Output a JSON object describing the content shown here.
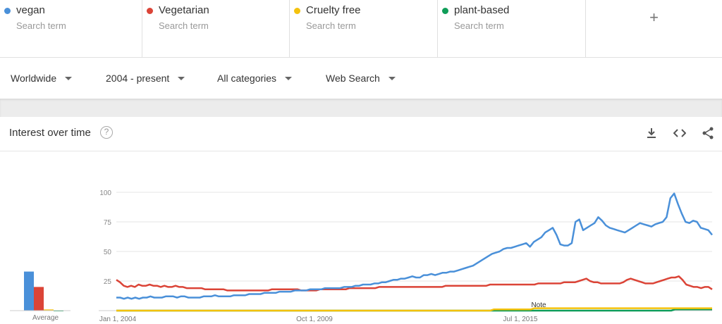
{
  "terms": [
    {
      "name": "vegan",
      "sub": "Search term",
      "color": "#4a90d9"
    },
    {
      "name": "Vegetarian",
      "sub": "Search term",
      "color": "#db4437"
    },
    {
      "name": "Cruelty free",
      "sub": "Search term",
      "color": "#f4c20d"
    },
    {
      "name": "plant-based",
      "sub": "Search term",
      "color": "#0f9d58"
    }
  ],
  "add_label": "+",
  "filters": {
    "region": "Worldwide",
    "period": "2004 - present",
    "category": "All categories",
    "search_type": "Web Search"
  },
  "card": {
    "title": "Interest over time",
    "help": "?",
    "avg_label": "Average",
    "note_label": "Note",
    "icons": [
      "download-icon",
      "embed-icon",
      "share-icon"
    ]
  },
  "chart_data": {
    "type": "line",
    "x_ticks": [
      "Jan 1, 2004",
      "Oct 1, 2009",
      "Jul 1, 2015"
    ],
    "y_ticks": [
      100,
      75,
      50,
      25
    ],
    "ylim": [
      0,
      100
    ],
    "series": [
      {
        "name": "vegan",
        "color": "#4a90d9",
        "values": [
          11,
          11,
          10,
          11,
          10,
          11,
          10,
          11,
          11,
          12,
          11,
          11,
          11,
          12,
          12,
          12,
          11,
          12,
          12,
          11,
          11,
          11,
          11,
          12,
          12,
          12,
          13,
          12,
          12,
          12,
          12,
          13,
          13,
          13,
          13,
          14,
          14,
          14,
          14,
          15,
          15,
          15,
          15,
          16,
          16,
          16,
          16,
          17,
          17,
          17,
          17,
          18,
          18,
          18,
          18,
          19,
          19,
          19,
          19,
          19,
          20,
          20,
          20,
          21,
          21,
          22,
          22,
          22,
          23,
          23,
          24,
          24,
          25,
          26,
          26,
          27,
          27,
          28,
          29,
          28,
          28,
          30,
          30,
          31,
          30,
          31,
          32,
          32,
          33,
          33,
          34,
          35,
          36,
          37,
          38,
          40,
          42,
          44,
          46,
          48,
          49,
          50,
          52,
          53,
          53,
          54,
          55,
          56,
          57,
          54,
          58,
          60,
          62,
          66,
          68,
          70,
          64,
          56,
          55,
          55,
          57,
          75,
          77,
          68,
          70,
          72,
          74,
          79,
          76,
          72,
          70,
          69,
          68,
          67,
          66,
          68,
          70,
          72,
          74,
          73,
          72,
          71,
          73,
          74,
          75,
          79,
          95,
          99,
          90,
          82,
          75,
          74,
          76,
          75,
          70,
          69,
          68,
          64
        ]
      },
      {
        "name": "Vegetarian",
        "color": "#db4437",
        "values": [
          26,
          24,
          21,
          20,
          21,
          20,
          22,
          21,
          21,
          22,
          21,
          21,
          20,
          21,
          20,
          20,
          21,
          20,
          20,
          19,
          19,
          19,
          19,
          19,
          18,
          18,
          18,
          18,
          18,
          18,
          17,
          17,
          17,
          17,
          17,
          17,
          17,
          17,
          17,
          17,
          17,
          17,
          18,
          18,
          18,
          18,
          18,
          18,
          18,
          18,
          17,
          17,
          17,
          17,
          17,
          18,
          18,
          18,
          18,
          18,
          18,
          18,
          18,
          19,
          19,
          19,
          19,
          19,
          19,
          19,
          19,
          20,
          20,
          20,
          20,
          20,
          20,
          20,
          20,
          20,
          20,
          20,
          20,
          20,
          20,
          20,
          20,
          20,
          20,
          21,
          21,
          21,
          21,
          21,
          21,
          21,
          21,
          21,
          21,
          21,
          21,
          22,
          22,
          22,
          22,
          22,
          22,
          22,
          22,
          22,
          22,
          22,
          22,
          22,
          23,
          23,
          23,
          23,
          23,
          23,
          23,
          24,
          24,
          24,
          24,
          25,
          26,
          27,
          25,
          24,
          24,
          23,
          23,
          23,
          23,
          23,
          23,
          24,
          26,
          27,
          26,
          25,
          24,
          23,
          23,
          23,
          24,
          25,
          26,
          27,
          28,
          28,
          29,
          26,
          22,
          21,
          20,
          20,
          19,
          20,
          20,
          18
        ]
      },
      {
        "name": "Cruelty free",
        "color": "#f4c20d",
        "values": [
          0,
          0,
          0,
          0,
          0,
          0,
          0,
          0,
          0,
          0,
          0,
          0,
          0,
          0,
          0,
          0,
          0,
          0,
          0,
          0,
          0,
          0,
          0,
          0,
          0,
          0,
          0,
          0,
          0,
          0,
          0,
          0,
          0,
          0,
          0,
          0,
          0,
          0,
          0,
          0,
          0,
          0,
          0,
          0,
          0,
          0,
          0,
          0,
          0,
          0,
          0,
          0,
          0,
          0,
          0,
          0,
          0,
          0,
          0,
          0,
          0,
          0,
          0,
          0,
          0,
          0,
          0,
          0,
          0,
          0,
          0,
          0,
          0,
          0,
          0,
          0,
          0,
          0,
          0,
          0,
          0,
          0,
          0,
          0,
          0,
          0,
          0,
          0,
          0,
          0,
          0,
          0,
          0,
          0,
          0,
          0,
          0,
          0,
          0,
          0,
          0,
          0,
          1,
          1,
          1,
          1,
          1,
          1,
          1,
          1,
          1,
          1,
          1,
          2,
          2,
          2,
          2,
          2,
          2,
          2,
          2,
          2,
          2,
          2,
          2,
          2,
          2,
          2,
          2,
          2,
          2,
          2,
          2,
          2,
          2,
          2,
          2,
          2,
          2,
          2,
          2,
          2,
          2,
          2,
          2,
          2,
          2,
          2,
          2,
          2,
          2,
          2,
          2,
          2,
          2,
          2,
          2,
          2,
          2,
          2,
          2,
          2
        ]
      },
      {
        "name": "plant-based",
        "color": "#0f9d58",
        "values": [
          0,
          0,
          0,
          0,
          0,
          0,
          0,
          0,
          0,
          0,
          0,
          0,
          0,
          0,
          0,
          0,
          0,
          0,
          0,
          0,
          0,
          0,
          0,
          0,
          0,
          0,
          0,
          0,
          0,
          0,
          0,
          0,
          0,
          0,
          0,
          0,
          0,
          0,
          0,
          0,
          0,
          0,
          0,
          0,
          0,
          0,
          0,
          0,
          0,
          0,
          0,
          0,
          0,
          0,
          0,
          0,
          0,
          0,
          0,
          0,
          0,
          0,
          0,
          0,
          0,
          0,
          0,
          0,
          0,
          0,
          0,
          0,
          0,
          0,
          0,
          0,
          0,
          0,
          0,
          0,
          0,
          0,
          0,
          0,
          0,
          0,
          0,
          0,
          0,
          0,
          0,
          0,
          0,
          0,
          0,
          0,
          0,
          0,
          0,
          0,
          0,
          0,
          0,
          0,
          0,
          0,
          0,
          0,
          0,
          0,
          0,
          0,
          0,
          0,
          0,
          0,
          0,
          0,
          0,
          0,
          0,
          0,
          0,
          0,
          0,
          0,
          0,
          0,
          0,
          0,
          0,
          0,
          0,
          0,
          0,
          0,
          0,
          0,
          0,
          0,
          0,
          0,
          0,
          0,
          0,
          0,
          0,
          0,
          0,
          0,
          1,
          1,
          1,
          1,
          1,
          1,
          1,
          1,
          1,
          1,
          1
        ]
      }
    ],
    "average": [
      33,
      20,
      1,
      0
    ]
  }
}
